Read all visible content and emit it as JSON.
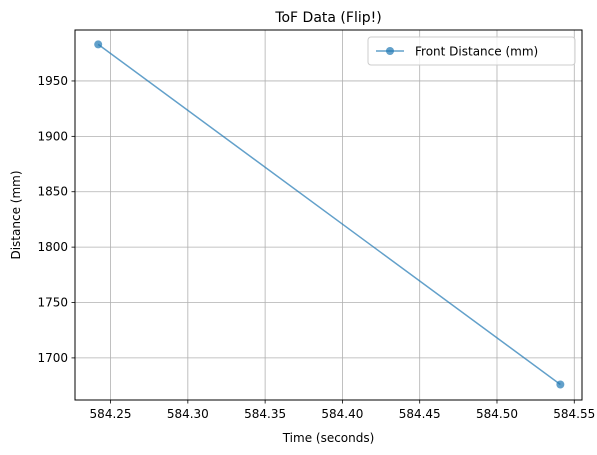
{
  "chart_data": {
    "type": "line",
    "title": "ToF Data (Flip!)",
    "xlabel": "Time (seconds)",
    "ylabel": "Distance (mm)",
    "xlim": [
      584.227,
      584.555
    ],
    "ylim": [
      1662,
      1996
    ],
    "xticks": [
      "584.25",
      "584.30",
      "584.35",
      "584.40",
      "584.45",
      "584.50",
      "584.55"
    ],
    "xtick_values": [
      584.25,
      584.3,
      584.35,
      584.4,
      584.45,
      584.5,
      584.55
    ],
    "yticks": [
      "1700",
      "1750",
      "1800",
      "1850",
      "1900",
      "1950"
    ],
    "ytick_values": [
      1700,
      1750,
      1800,
      1850,
      1900,
      1950
    ],
    "grid": true,
    "legend_position": "top-right",
    "series": [
      {
        "name": "Front Distance (mm)",
        "color": "#1f77b4",
        "marker": "circle",
        "x": [
          584.242,
          584.541
        ],
        "y": [
          1983,
          1676
        ]
      }
    ]
  }
}
